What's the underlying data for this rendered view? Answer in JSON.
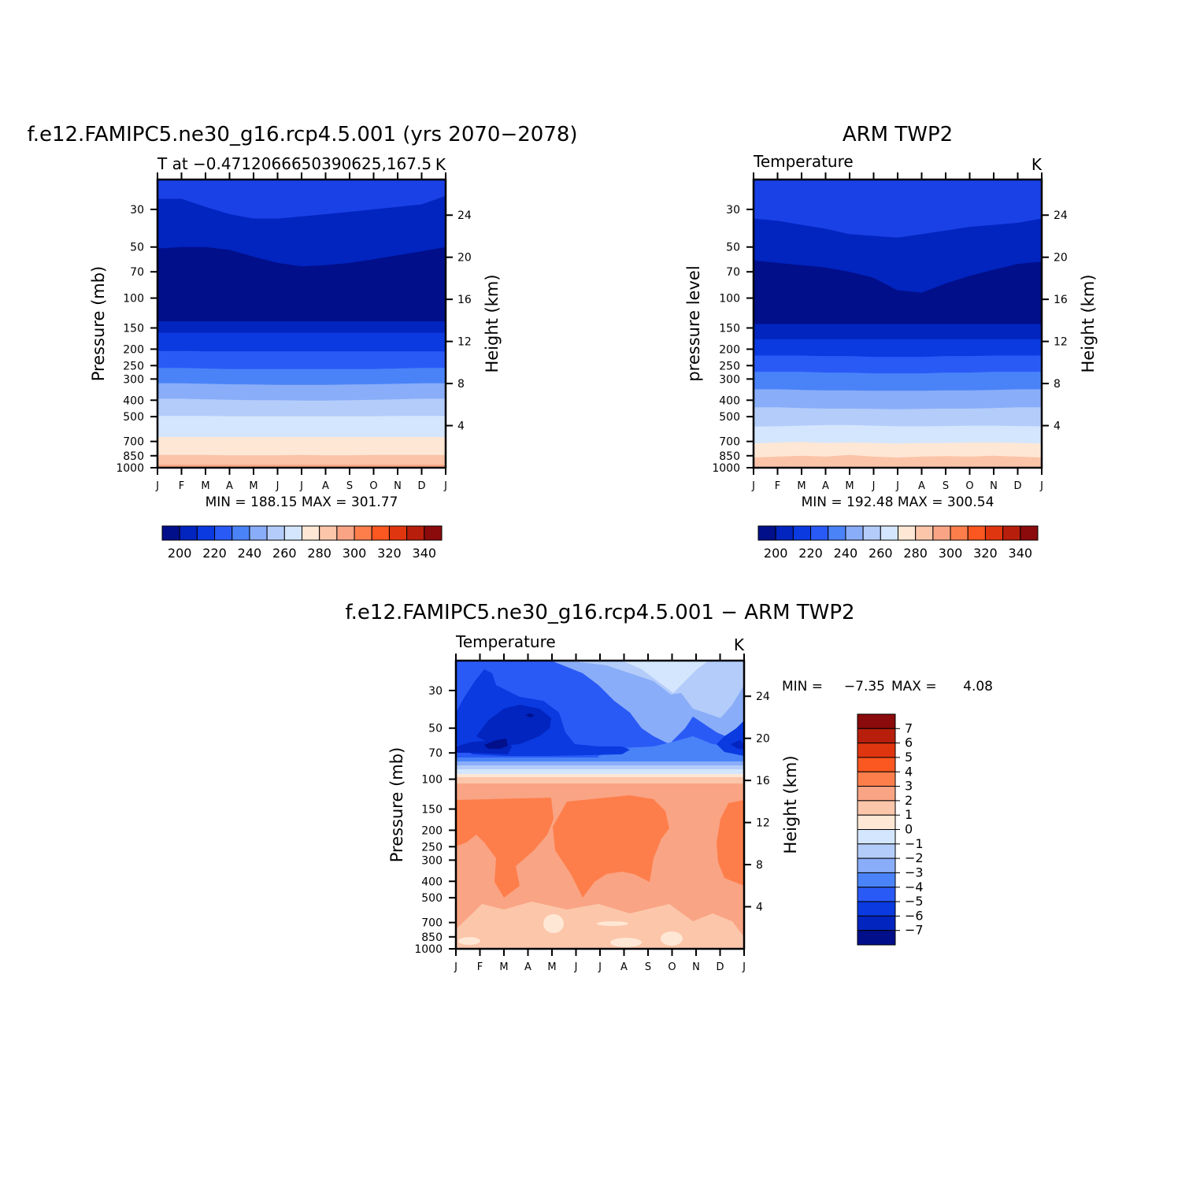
{
  "chart_data": [
    {
      "type": "contour",
      "title": "f.e12.FAMIPC5.ne30_g16.rcp4.5.001 (yrs 2070−2078)",
      "left_string": "T at −0.4712066650390625,167.5",
      "right_string": "K",
      "ylabel": "Pressure (mb)",
      "ylabel_right": "Height (km)",
      "stats": "MIN = 188.15 MAX = 301.77",
      "min": 188.15,
      "max": 301.77,
      "x_ticks": [
        "J",
        "F",
        "M",
        "A",
        "M",
        "J",
        "J",
        "A",
        "S",
        "O",
        "N",
        "D",
        "J"
      ],
      "y_ticks": [
        30,
        50,
        70,
        100,
        150,
        200,
        250,
        300,
        400,
        500,
        700,
        850,
        1000
      ],
      "y_range": [
        20,
        1000
      ],
      "height_ticks": [
        24,
        20,
        16,
        12,
        8,
        4
      ],
      "colorbar_labels": [
        "200",
        "220",
        "240",
        "260",
        "280",
        "300",
        "320",
        "340"
      ],
      "bands": [
        {
          "color": "#1a41e6",
          "boundary": null
        },
        {
          "color": "#0224bf",
          "boundary": [
            26,
            26,
            29,
            32,
            34,
            34,
            33,
            32,
            31,
            30,
            29,
            28,
            25
          ]
        },
        {
          "color": "#010f8a",
          "boundary": [
            51,
            50,
            50,
            52,
            57,
            62,
            65,
            64,
            62,
            59,
            56,
            53,
            50
          ]
        },
        {
          "color": "#0224bf",
          "boundary": [
            137,
            137,
            137,
            137,
            137,
            137,
            137,
            137,
            137,
            137,
            137,
            137,
            137
          ]
        },
        {
          "color": "#0a3ae0",
          "boundary": [
            160,
            160,
            160,
            160,
            160,
            160,
            160,
            160,
            160,
            160,
            160,
            160,
            160
          ]
        },
        {
          "color": "#2a5af6",
          "boundary": [
            205,
            205,
            206,
            206,
            206,
            206,
            206,
            206,
            206,
            206,
            206,
            206,
            206
          ]
        },
        {
          "color": "#4a83f8",
          "boundary": [
            258,
            258,
            260,
            262,
            262,
            262,
            262,
            262,
            262,
            262,
            260,
            258,
            258
          ]
        },
        {
          "color": "#89adf8",
          "boundary": [
            318,
            318,
            320,
            322,
            323,
            325,
            325,
            325,
            323,
            322,
            320,
            318,
            318
          ]
        },
        {
          "color": "#b4ccfa",
          "boundary": [
            392,
            392,
            395,
            398,
            400,
            400,
            402,
            402,
            400,
            398,
            395,
            392,
            392
          ]
        },
        {
          "color": "#d4e6fd",
          "boundary": [
            495,
            495,
            495,
            497,
            497,
            497,
            497,
            497,
            497,
            497,
            495,
            495,
            495
          ]
        },
        {
          "color": "#ffe7d5",
          "boundary": [
            660,
            660,
            660,
            660,
            660,
            660,
            660,
            660,
            660,
            660,
            660,
            660,
            660
          ]
        },
        {
          "color": "#fbc4a8",
          "boundary": [
            840,
            840,
            840,
            845,
            845,
            845,
            840,
            845,
            845,
            840,
            840,
            840,
            840
          ]
        },
        {
          "color": "#f7a583",
          "boundary": [
            960,
            960,
            960,
            960,
            960,
            960,
            960,
            960,
            960,
            960,
            960,
            960,
            960
          ]
        }
      ]
    },
    {
      "type": "contour",
      "title": "ARM TWP2",
      "left_string": "Temperature",
      "right_string": "K",
      "ylabel": "pressure level",
      "ylabel_right": "Height (km)",
      "stats": "MIN = 192.48 MAX = 300.54",
      "min": 192.48,
      "max": 300.54,
      "x_ticks": [
        "J",
        "F",
        "M",
        "A",
        "M",
        "J",
        "J",
        "A",
        "S",
        "O",
        "N",
        "D",
        "J"
      ],
      "y_ticks": [
        30,
        50,
        70,
        100,
        150,
        200,
        250,
        300,
        400,
        500,
        700,
        850,
        1000
      ],
      "y_range": [
        20,
        1000
      ],
      "height_ticks": [
        24,
        20,
        16,
        12,
        8,
        4
      ],
      "colorbar_labels": [
        "200",
        "220",
        "240",
        "260",
        "280",
        "300",
        "320",
        "340"
      ],
      "bands": [
        {
          "color": "#1a41e6",
          "boundary": null
        },
        {
          "color": "#0224bf",
          "boundary": [
            34,
            35,
            37,
            39,
            42,
            43,
            44,
            42,
            40,
            38,
            37,
            36,
            34
          ]
        },
        {
          "color": "#010f8a",
          "boundary": [
            60,
            62,
            64,
            66,
            70,
            76,
            90,
            93,
            82,
            74,
            68,
            63,
            61
          ]
        },
        {
          "color": "#0224bf",
          "boundary": [
            142,
            142,
            142,
            142,
            142,
            142,
            142,
            142,
            142,
            142,
            142,
            142,
            142
          ]
        },
        {
          "color": "#0a3ae0",
          "boundary": [
            175,
            175,
            175,
            175,
            175,
            175,
            175,
            175,
            175,
            175,
            175,
            175,
            175
          ]
        },
        {
          "color": "#2a5af6",
          "boundary": [
            218,
            218,
            218,
            220,
            220,
            222,
            222,
            222,
            220,
            220,
            218,
            218,
            218
          ]
        },
        {
          "color": "#4a83f8",
          "boundary": [
            272,
            272,
            272,
            275,
            275,
            278,
            278,
            278,
            275,
            275,
            272,
            272,
            272
          ]
        },
        {
          "color": "#89adf8",
          "boundary": [
            345,
            345,
            348,
            350,
            350,
            352,
            352,
            352,
            350,
            350,
            348,
            345,
            345
          ]
        },
        {
          "color": "#b4ccfa",
          "boundary": [
            440,
            440,
            445,
            448,
            448,
            450,
            452,
            450,
            448,
            448,
            445,
            440,
            440
          ]
        },
        {
          "color": "#d4e6fd",
          "boundary": [
            572,
            570,
            565,
            560,
            560,
            565,
            570,
            570,
            568,
            565,
            565,
            568,
            570
          ]
        },
        {
          "color": "#ffe7d5",
          "boundary": [
            720,
            710,
            705,
            715,
            710,
            715,
            720,
            715,
            715,
            710,
            710,
            715,
            720
          ]
        },
        {
          "color": "#fbc4a8",
          "boundary": [
            870,
            860,
            850,
            860,
            840,
            860,
            870,
            860,
            855,
            860,
            850,
            860,
            870
          ]
        }
      ]
    },
    {
      "type": "contour",
      "title": "f.e12.FAMIPC5.ne30_g16.rcp4.5.001 − ARM TWP2",
      "left_string": "Temperature",
      "right_string": "K",
      "ylabel": "Pressure (mb)",
      "ylabel_right": "Height (km)",
      "stats_min_label": "MIN =",
      "stats_min": "−7.35",
      "stats_max_label": "MAX =",
      "stats_max": "4.08",
      "x_ticks": [
        "J",
        "F",
        "M",
        "A",
        "M",
        "J",
        "J",
        "A",
        "S",
        "O",
        "N",
        "D",
        "J"
      ],
      "y_ticks": [
        30,
        50,
        70,
        100,
        150,
        200,
        250,
        300,
        400,
        500,
        700,
        850,
        1000
      ],
      "y_range": [
        20,
        1000
      ],
      "height_ticks": [
        24,
        20,
        16,
        12,
        8,
        4
      ],
      "colorbar_labels": [
        "7",
        "6",
        "5",
        "4",
        "3",
        "2",
        "1",
        "0",
        "−1",
        "−2",
        "−3",
        "−4",
        "−5",
        "−6",
        "−7"
      ],
      "colorbar_colors": [
        "#8b0a0b",
        "#b71f0c",
        "#e0360f",
        "#fb5720",
        "#fe7e4b",
        "#f9a484",
        "#fcc6aa",
        "#ffe7d5",
        "#d4e6fd",
        "#b4ccfa",
        "#89adf8",
        "#4a83f8",
        "#2a5af6",
        "#0a3ae0",
        "#0224bf",
        "#010f8a"
      ]
    }
  ],
  "colormap": [
    "#010f8a",
    "#0224bf",
    "#0a3ae0",
    "#2a5af6",
    "#4a83f8",
    "#89adf8",
    "#b4ccfa",
    "#d4e6fd",
    "#ffe7d5",
    "#fcc6aa",
    "#f9a484",
    "#fe7e4b",
    "#fb5720",
    "#e0360f",
    "#b71f0c",
    "#8b0a0b"
  ]
}
